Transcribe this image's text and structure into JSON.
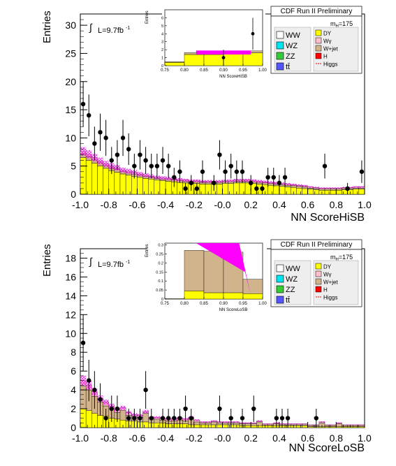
{
  "panels": [
    {
      "header": "CDF Run II Preliminary",
      "lumi": "L=9.7fb",
      "lumi_sup": "-1",
      "int_symbol": "∫",
      "mass_label": "m",
      "mass_sub": "H",
      "mass_value": "=175",
      "legend_left": [
        "WW",
        "WZ",
        "ZZ",
        "tt̄"
      ],
      "legend_right": [
        "DY",
        "Wγ",
        "W+jet",
        "H",
        "Higgs"
      ]
    },
    {
      "header": "CDF Run II Preliminary",
      "lumi": "L=9.7fb",
      "lumi_sup": "-1",
      "int_symbol": "∫",
      "mass_label": "m",
      "mass_sub": "H",
      "mass_value": "=175",
      "legend_left": [
        "WW",
        "WZ",
        "ZZ",
        "tt̄"
      ],
      "legend_right": [
        "DY",
        "Wγ",
        "W+jet",
        "H",
        "Higgs"
      ]
    }
  ],
  "colors": {
    "dy": "#ffff00",
    "wjet": "#d2b48c",
    "wgamma": "#ffc0cb",
    "ww": "#ffffff",
    "wz": "#00e5ee",
    "zz": "#33cc33",
    "tt": "#5555ff",
    "h": "#ff0000",
    "signal": "#ff00ff"
  },
  "chart_data": [
    {
      "type": "bar",
      "title": "",
      "xlabel": "NN ScoreHiSB",
      "ylabel": "Entries",
      "xlim": [
        -1.0,
        1.0
      ],
      "ylim": [
        0,
        32
      ],
      "x_ticks": [
        "-1.0",
        "-0.8",
        "-0.6",
        "-0.4",
        "-0.2",
        "-0.0",
        "0.2",
        "0.4",
        "0.6",
        "0.8",
        "1.0"
      ],
      "y_ticks": [
        "0",
        "5",
        "10",
        "15",
        "20",
        "25",
        "30"
      ],
      "bin_edges": [
        -1.0,
        -0.96,
        -0.92,
        -0.88,
        -0.84,
        -0.8,
        -0.76,
        -0.72,
        -0.68,
        -0.64,
        -0.6,
        -0.56,
        -0.52,
        -0.48,
        -0.44,
        -0.4,
        -0.36,
        -0.32,
        -0.28,
        -0.24,
        -0.2,
        -0.16,
        -0.12,
        -0.08,
        -0.04,
        0.0,
        0.04,
        0.08,
        0.12,
        0.16,
        0.2,
        0.24,
        0.28,
        0.32,
        0.36,
        0.4,
        0.44,
        0.48,
        0.52,
        0.56,
        0.6,
        0.64,
        0.68,
        0.72,
        0.76,
        0.8,
        0.84,
        0.88,
        0.92,
        0.96,
        1.0
      ],
      "series": [
        {
          "name": "DY",
          "values": [
            6.5,
            6.0,
            5.5,
            5.0,
            4.6,
            4.2,
            3.9,
            3.6,
            3.4,
            3.2,
            3.0,
            2.8,
            2.7,
            2.5,
            2.4,
            2.3,
            2.2,
            2.1,
            2.0,
            1.9,
            1.9,
            1.8,
            1.8,
            1.8,
            1.8,
            1.9,
            1.9,
            2.0,
            2.0,
            2.0,
            1.9,
            1.8,
            1.7,
            1.6,
            1.5,
            1.4,
            1.3,
            1.2,
            1.1,
            1.0,
            0.9,
            0.8,
            0.7,
            0.7,
            0.7,
            0.7,
            0.8,
            0.8,
            0.9,
            0.9
          ]
        },
        {
          "name": "W+jet",
          "values": [
            0.7,
            0.7,
            0.6,
            0.6,
            0.5,
            0.5,
            0.5,
            0.4,
            0.4,
            0.4,
            0.4,
            0.4,
            0.3,
            0.3,
            0.3,
            0.3,
            0.3,
            0.3,
            0.3,
            0.3,
            0.3,
            0.3,
            0.3,
            0.3,
            0.3,
            0.3,
            0.3,
            0.3,
            0.3,
            0.3,
            0.3,
            0.3,
            0.3,
            0.3,
            0.3,
            0.3,
            0.3,
            0.3,
            0.3,
            0.3,
            0.2,
            0.2,
            0.2,
            0.2,
            0.2,
            0.2,
            0.2,
            0.2,
            0.2,
            0.2
          ]
        },
        {
          "name": "Wγ",
          "values": [
            0.4,
            0.4,
            0.4,
            0.3,
            0.3,
            0.3,
            0.3,
            0.3,
            0.3,
            0.3,
            0.2,
            0.2,
            0.2,
            0.2,
            0.2,
            0.2,
            0.2,
            0.2,
            0.2,
            0.2,
            0.2,
            0.2,
            0.2,
            0.2,
            0.2,
            0.2,
            0.2,
            0.2,
            0.2,
            0.2,
            0.2,
            0.2,
            0.2,
            0.2,
            0.2,
            0.2,
            0.2,
            0.2,
            0.2,
            0.2,
            0.2,
            0.2,
            0.2,
            0.2,
            0.2,
            0.2,
            0.2,
            0.2,
            0.2,
            0.2
          ]
        }
      ],
      "data_points": [
        {
          "x": -0.98,
          "y": 16,
          "err": 4.0
        },
        {
          "x": -0.94,
          "y": 14,
          "err": 3.7
        },
        {
          "x": -0.9,
          "y": 9,
          "err": 3.0
        },
        {
          "x": -0.86,
          "y": 11,
          "err": 3.3
        },
        {
          "x": -0.82,
          "y": 10,
          "err": 3.2
        },
        {
          "x": -0.78,
          "y": 6,
          "err": 2.4
        },
        {
          "x": -0.74,
          "y": 7,
          "err": 2.6
        },
        {
          "x": -0.7,
          "y": 10,
          "err": 3.2
        },
        {
          "x": -0.66,
          "y": 8,
          "err": 2.8
        },
        {
          "x": -0.62,
          "y": 5,
          "err": 2.2
        },
        {
          "x": -0.58,
          "y": 7,
          "err": 2.6
        },
        {
          "x": -0.54,
          "y": 6,
          "err": 2.4
        },
        {
          "x": -0.5,
          "y": 5,
          "err": 2.2
        },
        {
          "x": -0.46,
          "y": 5,
          "err": 2.2
        },
        {
          "x": -0.42,
          "y": 6,
          "err": 2.4
        },
        {
          "x": -0.38,
          "y": 5,
          "err": 2.2
        },
        {
          "x": -0.34,
          "y": 3,
          "err": 1.7
        },
        {
          "x": -0.3,
          "y": 4,
          "err": 2.0
        },
        {
          "x": -0.26,
          "y": 1,
          "err": 1.0
        },
        {
          "x": -0.22,
          "y": 2,
          "err": 1.4
        },
        {
          "x": -0.18,
          "y": 1,
          "err": 1.0
        },
        {
          "x": -0.14,
          "y": 4,
          "err": 2.0
        },
        {
          "x": -0.06,
          "y": 2,
          "err": 1.4
        },
        {
          "x": -0.02,
          "y": 7,
          "err": 2.6
        },
        {
          "x": 0.02,
          "y": 4,
          "err": 2.0
        },
        {
          "x": 0.06,
          "y": 5,
          "err": 2.2
        },
        {
          "x": 0.1,
          "y": 4,
          "err": 2.0
        },
        {
          "x": 0.14,
          "y": 4,
          "err": 2.0
        },
        {
          "x": 0.2,
          "y": 2,
          "err": 1.4
        },
        {
          "x": 0.24,
          "y": 1,
          "err": 1.0
        },
        {
          "x": 0.28,
          "y": 1,
          "err": 1.0
        },
        {
          "x": 0.32,
          "y": 3,
          "err": 1.7
        },
        {
          "x": 0.36,
          "y": 3,
          "err": 1.7
        },
        {
          "x": 0.4,
          "y": 2,
          "err": 1.4
        },
        {
          "x": 0.44,
          "y": 3,
          "err": 1.7
        },
        {
          "x": 0.72,
          "y": 5,
          "err": 2.2
        },
        {
          "x": 0.88,
          "y": 1,
          "err": 1.0
        },
        {
          "x": 0.98,
          "y": 4,
          "err": 2.0
        }
      ],
      "inset": {
        "xlabel": "NN ScoreHiSB",
        "ylabel": "Entries",
        "xlim": [
          0.75,
          1.0
        ],
        "ylim": [
          0,
          7
        ],
        "x_ticks": [
          "0.75",
          "0.80",
          "0.85",
          "0.90",
          "0.95",
          "1.00"
        ],
        "y_ticks": [
          "0",
          "1",
          "2",
          "3",
          "4",
          "5",
          "6"
        ],
        "bin_edges": [
          0.75,
          0.8,
          0.85,
          0.9,
          0.95,
          1.0
        ],
        "dy_values": [
          0.4,
          1.4,
          1.4,
          1.5,
          1.6
        ],
        "wjet_values": [
          0.1,
          0.25,
          0.25,
          0.25,
          0.25
        ],
        "signal_band": {
          "x1": 0.83,
          "x2": 0.97,
          "low": 1.4,
          "high": 1.9
        },
        "data_points": [
          {
            "x": 0.9,
            "y": 1,
            "err": 1.0
          },
          {
            "x": 0.975,
            "y": 4,
            "err": 2.0
          }
        ]
      }
    },
    {
      "type": "bar",
      "title": "",
      "xlabel": "NN ScoreLoSB",
      "ylabel": "Entries",
      "xlim": [
        -1.0,
        1.0
      ],
      "ylim": [
        0,
        19
      ],
      "x_ticks": [
        "-1.0",
        "-0.8",
        "-0.6",
        "-0.4",
        "-0.2",
        "-0.0",
        "0.2",
        "0.4",
        "0.6",
        "0.8",
        "1.0"
      ],
      "y_ticks": [
        "0",
        "2",
        "4",
        "6",
        "8",
        "10",
        "12",
        "14",
        "16",
        "18"
      ],
      "bin_edges": [
        -1.0,
        -0.96,
        -0.92,
        -0.88,
        -0.84,
        -0.8,
        -0.76,
        -0.72,
        -0.68,
        -0.64,
        -0.6,
        -0.56,
        -0.52,
        -0.48,
        -0.44,
        -0.4,
        -0.36,
        -0.32,
        -0.28,
        -0.24,
        -0.2,
        -0.16,
        -0.12,
        -0.08,
        -0.04,
        0.0,
        0.04,
        0.08,
        0.12,
        0.16,
        0.2,
        0.24,
        0.28,
        0.32,
        0.36,
        0.4,
        0.44,
        0.48,
        0.52,
        0.56,
        0.6,
        0.64,
        0.68,
        0.72,
        0.76,
        0.8,
        0.84,
        0.88,
        0.92,
        0.96,
        1.0
      ],
      "series": [
        {
          "name": "DY",
          "values": [
            2.0,
            1.8,
            1.5,
            1.3,
            1.2,
            1.0,
            0.9,
            0.8,
            0.7,
            0.7,
            0.6,
            0.6,
            0.5,
            0.5,
            0.5,
            0.4,
            0.4,
            0.4,
            0.4,
            0.3,
            0.3,
            0.3,
            0.3,
            0.3,
            0.3,
            0.3,
            0.3,
            0.3,
            0.2,
            0.2,
            0.2,
            0.2,
            0.2,
            0.2,
            0.2,
            0.2,
            0.2,
            0.2,
            0.2,
            0.2,
            0.1,
            0.1,
            0.1,
            0.1,
            0.1,
            0.1,
            0.1,
            0.1,
            0.1,
            0.1
          ]
        },
        {
          "name": "W+jet",
          "values": [
            2.4,
            2.2,
            1.8,
            1.4,
            1.1,
            1.0,
            0.7,
            1.0,
            0.6,
            0.5,
            0.5,
            0.9,
            0.4,
            0.4,
            0.3,
            0.3,
            0.3,
            0.4,
            0.3,
            0.6,
            0.3,
            0.2,
            0.2,
            0.3,
            0.2,
            0.2,
            0.2,
            0.2,
            0.2,
            0.2,
            0.2,
            0.4,
            0.1,
            0.1,
            0.2,
            0.1,
            0.1,
            0.1,
            0.1,
            0.1,
            0.1,
            0.1,
            0.4,
            0.1,
            0.1,
            0.3,
            0.1,
            0.1,
            0.1,
            0.1
          ]
        },
        {
          "name": "Wγ",
          "values": [
            0.6,
            0.5,
            0.5,
            0.4,
            0.4,
            0.3,
            0.3,
            0.3,
            0.3,
            0.2,
            0.2,
            0.2,
            0.2,
            0.2,
            0.2,
            0.2,
            0.2,
            0.2,
            0.2,
            0.2,
            0.2,
            0.1,
            0.1,
            0.1,
            0.1,
            0.1,
            0.1,
            0.1,
            0.1,
            0.1,
            0.1,
            0.1,
            0.1,
            0.1,
            0.1,
            0.1,
            0.1,
            0.1,
            0.1,
            0.1,
            0.1,
            0.1,
            0.1,
            0.1,
            0.1,
            0.1,
            0.1,
            0.1,
            0.1,
            0.1
          ]
        }
      ],
      "data_points": [
        {
          "x": -0.98,
          "y": 9,
          "err": 3.0
        },
        {
          "x": -0.94,
          "y": 5,
          "err": 2.2
        },
        {
          "x": -0.9,
          "y": 4,
          "err": 2.0
        },
        {
          "x": -0.86,
          "y": 3,
          "err": 1.7
        },
        {
          "x": -0.82,
          "y": 1,
          "err": 1.0
        },
        {
          "x": -0.78,
          "y": 2,
          "err": 1.4
        },
        {
          "x": -0.74,
          "y": 2,
          "err": 1.4
        },
        {
          "x": -0.66,
          "y": 1,
          "err": 1.0
        },
        {
          "x": -0.62,
          "y": 1,
          "err": 1.0
        },
        {
          "x": -0.58,
          "y": 1,
          "err": 1.0
        },
        {
          "x": -0.54,
          "y": 4,
          "err": 2.0
        },
        {
          "x": -0.5,
          "y": 1,
          "err": 1.0
        },
        {
          "x": -0.42,
          "y": 1,
          "err": 1.0
        },
        {
          "x": -0.38,
          "y": 1,
          "err": 1.0
        },
        {
          "x": -0.34,
          "y": 1,
          "err": 1.0
        },
        {
          "x": -0.3,
          "y": 1,
          "err": 1.0
        },
        {
          "x": -0.26,
          "y": 2,
          "err": 1.4
        },
        {
          "x": -0.22,
          "y": 1,
          "err": 1.0
        },
        {
          "x": -0.02,
          "y": 2,
          "err": 1.4
        },
        {
          "x": 0.06,
          "y": 1,
          "err": 1.0
        },
        {
          "x": 0.14,
          "y": 1,
          "err": 1.0
        },
        {
          "x": 0.22,
          "y": 2,
          "err": 1.4
        },
        {
          "x": 0.38,
          "y": 1,
          "err": 1.0
        },
        {
          "x": 0.42,
          "y": 1,
          "err": 1.0
        },
        {
          "x": 0.46,
          "y": 1,
          "err": 1.0
        },
        {
          "x": 0.66,
          "y": 1,
          "err": 1.0
        }
      ],
      "inset": {
        "xlabel": "NN ScoreLoSB",
        "ylabel": "Entries",
        "xlim": [
          0.75,
          1.0
        ],
        "ylim": [
          0,
          0.31
        ],
        "x_ticks": [
          "0.75",
          "0.80",
          "0.85",
          "0.90",
          "0.95",
          "1.00"
        ],
        "y_ticks": [
          "0",
          "0.05",
          "0.1",
          "0.15",
          "0.2",
          "0.25",
          "0.3"
        ],
        "bin_edges": [
          0.75,
          0.8,
          0.85,
          0.9,
          0.95,
          1.0
        ],
        "dy_values": [
          0.002,
          0.045,
          0.035,
          0.035,
          0.03
        ],
        "wjet_values": [
          0.0,
          0.225,
          0.23,
          0.225,
          0.08
        ],
        "signal_band": {
          "x1": 0.83,
          "x2": 0.97,
          "low": 0.24,
          "high": 0.31
        },
        "data_points": []
      }
    }
  ]
}
